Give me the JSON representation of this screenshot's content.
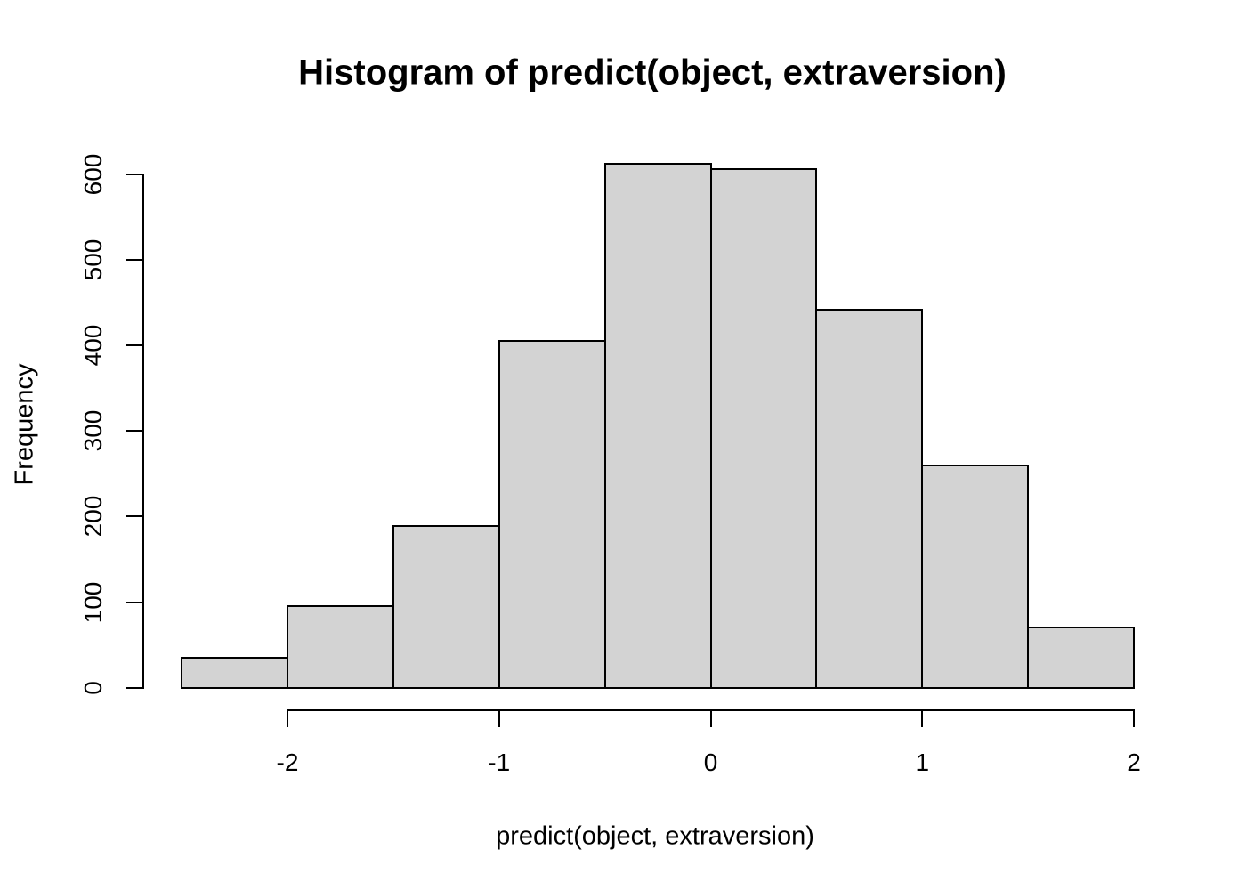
{
  "chart_data": {
    "type": "bar",
    "subtype": "histogram",
    "title": "Histogram of predict(object, extraversion)",
    "xlabel": "predict(object, extraversion)",
    "ylabel": "Frequency",
    "xlim": [
      -2.5,
      2.0
    ],
    "ylim": [
      0,
      600
    ],
    "x_ticks": [
      -2,
      -1,
      0,
      1,
      2
    ],
    "y_ticks": [
      0,
      100,
      200,
      300,
      400,
      500,
      600
    ],
    "bin_width": 0.5,
    "bins": [
      {
        "range": [
          -2.5,
          -2.0
        ],
        "count": 35
      },
      {
        "range": [
          -2.0,
          -1.5
        ],
        "count": 95
      },
      {
        "range": [
          -1.5,
          -1.0
        ],
        "count": 189
      },
      {
        "range": [
          -1.0,
          -0.5
        ],
        "count": 405
      },
      {
        "range": [
          -0.5,
          0.0
        ],
        "count": 612
      },
      {
        "range": [
          0.0,
          0.5
        ],
        "count": 606
      },
      {
        "range": [
          0.5,
          1.0
        ],
        "count": 442
      },
      {
        "range": [
          1.0,
          1.5
        ],
        "count": 260
      },
      {
        "range": [
          1.5,
          2.0
        ],
        "count": 70
      }
    ],
    "grid": false,
    "legend": false,
    "colors": {
      "bar_fill": "#d3d3d3",
      "bar_border": "#000000",
      "axis": "#000000",
      "text": "#000000",
      "background": "#ffffff"
    }
  }
}
